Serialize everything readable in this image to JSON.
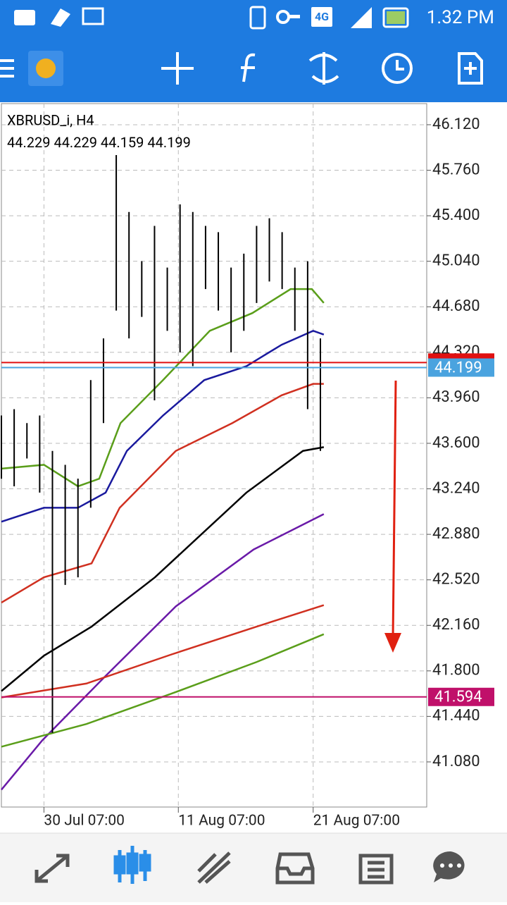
{
  "status_bar": {
    "network": "4G",
    "time": "1.32 PM"
  },
  "chart_data": {
    "type": "candlestick",
    "title": "XBRUSD_i, H4",
    "ohlc": [
      44.229,
      44.229,
      44.159,
      44.199
    ],
    "xlim": [
      0,
      100
    ],
    "ylim": [
      40.723,
      46.287
    ],
    "xticks": [
      {
        "value": 10,
        "label": "30 Jul 07:00"
      },
      {
        "value": 41.6,
        "label": "11 Aug 07:00"
      },
      {
        "value": 73.3,
        "label": "21 Aug 07:00"
      }
    ],
    "yticks": [
      {
        "value": 46.12,
        "label": "46.120"
      },
      {
        "value": 45.76,
        "label": "45.760"
      },
      {
        "value": 45.4,
        "label": "45.400"
      },
      {
        "value": 45.04,
        "label": "45.040"
      },
      {
        "value": 44.68,
        "label": "44.680"
      },
      {
        "value": 44.32,
        "label": "44.320"
      },
      {
        "value": 43.96,
        "label": "43.960"
      },
      {
        "value": 43.6,
        "label": "43.600"
      },
      {
        "value": 43.24,
        "label": "43.240"
      },
      {
        "value": 42.88,
        "label": "42.880"
      },
      {
        "value": 42.52,
        "label": "42.520"
      },
      {
        "value": 42.16,
        "label": "42.160"
      },
      {
        "value": 41.8,
        "label": "41.800"
      },
      {
        "value": 41.44,
        "label": "41.440"
      },
      {
        "value": 41.08,
        "label": "41.080"
      }
    ],
    "grid": true,
    "bar_color": "#000000",
    "x": [
      0,
      3,
      6,
      9,
      12,
      15,
      18,
      21,
      24,
      27,
      30,
      33,
      36,
      39,
      42,
      45,
      48,
      51,
      54,
      57,
      60,
      63,
      66,
      69,
      72,
      75
    ],
    "high": [
      43.82,
      43.87,
      43.76,
      43.82,
      43.54,
      43.43,
      43.32,
      44.1,
      44.43,
      45.88,
      45.43,
      45.04,
      45.32,
      44.99,
      45.49,
      45.43,
      45.32,
      45.27,
      44.99,
      45.1,
      45.32,
      45.38,
      45.27,
      44.99,
      45.04,
      44.43
    ],
    "low": [
      43.32,
      43.26,
      43.48,
      43.21,
      41.31,
      42.48,
      42.54,
      43.09,
      43.76,
      44.65,
      44.43,
      44.6,
      43.94,
      44.49,
      44.32,
      44.21,
      44.82,
      44.65,
      44.32,
      44.49,
      44.71,
      44.88,
      44.82,
      44.49,
      43.87,
      43.54
    ],
    "series": [
      {
        "color": "#5a9e1a",
        "x": [
          0,
          10,
          18,
          23,
          28,
          38,
          49,
          59,
          68,
          73,
          75.8
        ],
        "values": [
          43.4,
          43.43,
          43.26,
          43.32,
          43.76,
          44.1,
          44.49,
          44.63,
          44.82,
          44.82,
          44.71
        ]
      },
      {
        "color": "#1a1a9e",
        "x": [
          0,
          10,
          18,
          24.5,
          29.5,
          38,
          47.7,
          57.6,
          65.9,
          73.3,
          75.8
        ],
        "values": [
          42.98,
          43.09,
          43.09,
          43.21,
          43.54,
          43.82,
          44.1,
          44.21,
          44.38,
          44.49,
          44.46
        ]
      },
      {
        "color": "#d03020",
        "x": [
          0,
          10,
          21.2,
          27.8,
          41,
          54.3,
          65.9,
          73.3,
          75.8
        ],
        "values": [
          42.34,
          42.54,
          42.65,
          43.09,
          43.54,
          43.76,
          43.98,
          44.07,
          44.07
        ]
      },
      {
        "color": "#000000",
        "x": [
          0,
          10,
          21.2,
          36.1,
          57.6,
          70.9,
          75.8
        ],
        "values": [
          41.64,
          41.92,
          42.15,
          42.54,
          43.21,
          43.54,
          43.57
        ]
      },
      {
        "color": "#6a1aa8",
        "x": [
          0,
          9.6,
          24.5,
          41,
          59.3,
          75.8
        ],
        "values": [
          40.86,
          41.25,
          41.76,
          42.31,
          42.76,
          43.04
        ]
      },
      {
        "color": "#d03020",
        "x": [
          0,
          20,
          40,
          60,
          75.8
        ],
        "values": [
          41.59,
          41.7,
          41.93,
          42.15,
          42.32
        ]
      },
      {
        "color": "#5a9e1a",
        "x": [
          0,
          20,
          40,
          60,
          75.8
        ],
        "values": [
          41.2,
          41.38,
          41.62,
          41.87,
          42.09
        ]
      }
    ],
    "price_lines": [
      {
        "value": 44.239,
        "color": "#e01010"
      },
      {
        "value": 44.199,
        "color": "#4aa3df",
        "label": "44.199"
      },
      {
        "value": 41.594,
        "color": "#c0106a",
        "label": "41.594"
      }
    ]
  }
}
